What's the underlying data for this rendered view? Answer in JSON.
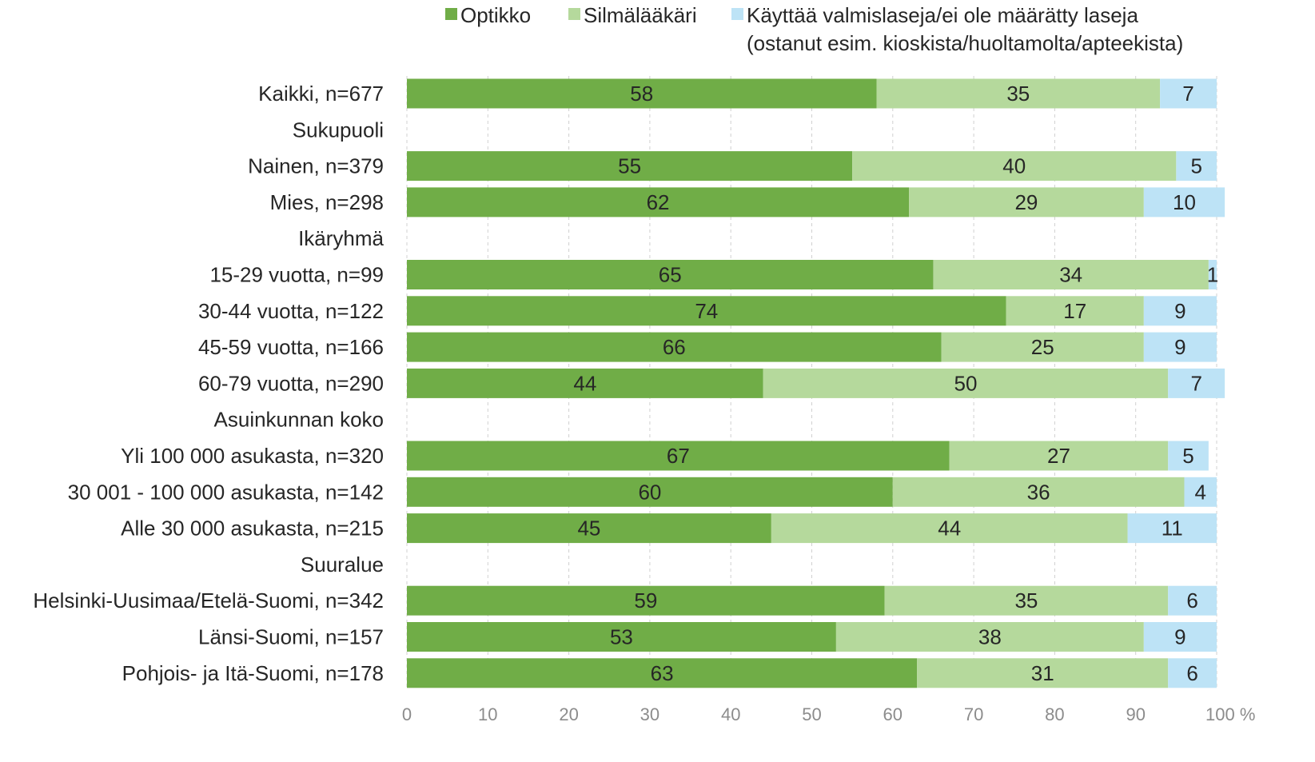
{
  "chart_data": {
    "type": "bar",
    "orientation": "horizontal",
    "stacked": true,
    "xlim": [
      0,
      100
    ],
    "x_ticks": [
      "0",
      "10",
      "20",
      "30",
      "40",
      "50",
      "60",
      "70",
      "80",
      "90",
      "100 %"
    ],
    "grid": "vertical dashed",
    "legend_position": "top",
    "categories": [
      "Kaikki, n=677",
      "Sukupuoli",
      "Nainen, n=379",
      "Mies, n=298",
      "Ikäryhmä",
      "15-29 vuotta, n=99",
      "30-44 vuotta, n=122",
      "45-59 vuotta, n=166",
      "60-79 vuotta, n=290",
      "Asuinkunnan koko",
      "Yli 100 000 asukasta, n=320",
      "30 001 - 100 000 asukasta, n=142",
      "Alle 30 000 asukasta, n=215",
      "Suuralue",
      "Helsinki-Uusimaa/Etelä-Suomi, n=342",
      "Länsi-Suomi, n=157",
      "Pohjois- ja Itä-Suomi, n=178"
    ],
    "series": [
      {
        "name": "Optikko",
        "color": "#70ad47",
        "values": [
          58,
          null,
          55,
          62,
          null,
          65,
          74,
          66,
          44,
          null,
          67,
          60,
          45,
          null,
          59,
          53,
          63
        ],
        "labels": [
          "58",
          "",
          "55",
          "62",
          "",
          "65",
          "74",
          "66",
          "44",
          "",
          "67",
          "60",
          "45",
          "",
          "59",
          "53",
          "63"
        ]
      },
      {
        "name": "Silmälääkäri",
        "color": "#b5d99c",
        "values": [
          35,
          null,
          40,
          29,
          null,
          34,
          17,
          25,
          50,
          null,
          27,
          36,
          44,
          null,
          35,
          38,
          31
        ],
        "labels": [
          "35",
          "",
          "40",
          "29",
          "",
          "34",
          "17",
          "25",
          "50",
          "",
          "27",
          "36",
          "44",
          "",
          "35",
          "38",
          "31"
        ]
      },
      {
        "name": "Käyttää valmislaseja/ei ole määrätty laseja (ostanut esim. kioskista/huoltamolta/apteekista)",
        "legend_lines": [
          "Käyttää valmislaseja/ei ole määrätty laseja",
          "(ostanut esim. kioskista/huoltamolta/apteekista)"
        ],
        "color": "#bde3f6",
        "values": [
          7,
          null,
          5,
          10,
          null,
          1,
          9,
          9,
          7,
          null,
          5,
          4,
          11,
          null,
          6,
          9,
          6
        ],
        "labels": [
          "7",
          "",
          "5",
          "10",
          "",
          "1",
          "9",
          "9",
          "7",
          "",
          "5",
          "4",
          "11",
          "",
          "6",
          "9",
          "6"
        ]
      }
    ]
  }
}
